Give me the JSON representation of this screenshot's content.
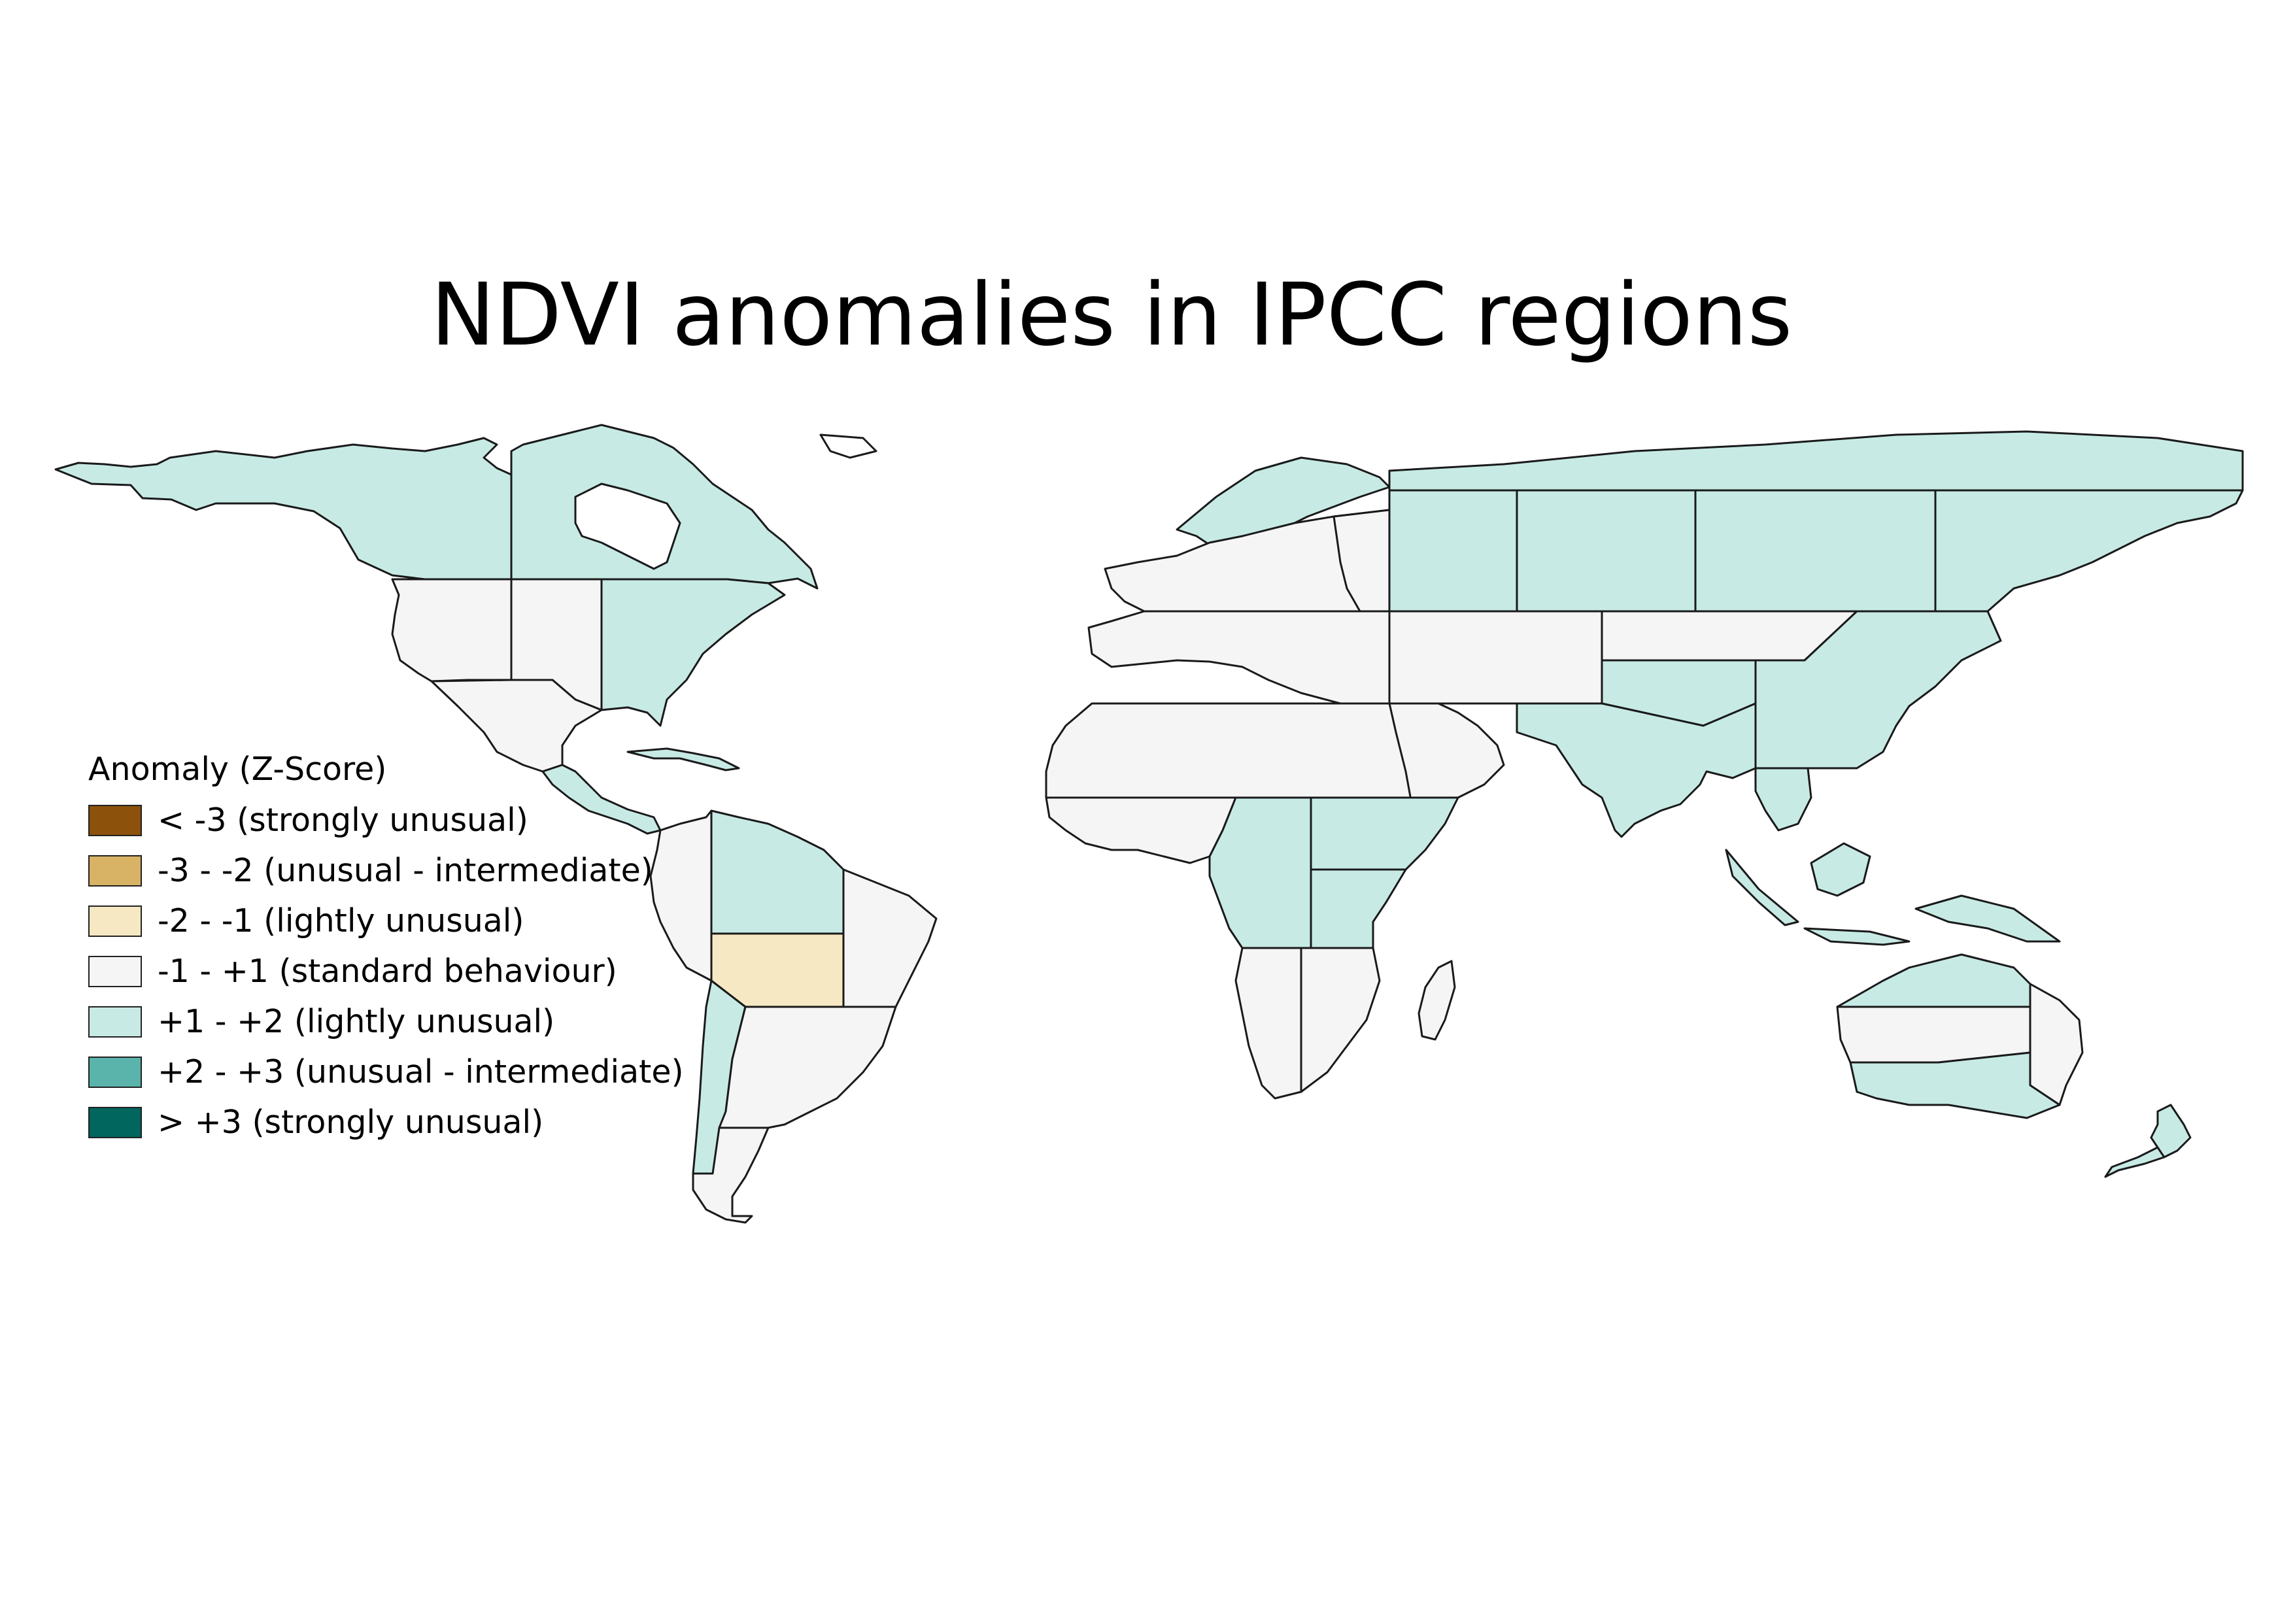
{
  "title": "NDVI anomalies in IPCC regions",
  "legend": {
    "title": "Anomaly (Z-Score)",
    "items": [
      {
        "label": "< -3 (strongly unusual)",
        "color": "#8c510a"
      },
      {
        "label": "-3 - -2 (unusual - intermediate)",
        "color": "#d8b365"
      },
      {
        "label": "-2 - -1 (lightly unusual)",
        "color": "#f6e8c3"
      },
      {
        "label": "-1 - +1 (standard behaviour)",
        "color": "#f5f5f5"
      },
      {
        "label": "+1 - +2 (lightly unusual)",
        "color": "#c7eae5"
      },
      {
        "label": "+2 - +3 (unusual - intermediate)",
        "color": "#5ab4ac"
      },
      {
        "label": "> +3 (strongly unusual)",
        "color": "#01665e"
      }
    ]
  },
  "map_data": {
    "class_colors": {
      "lightly_unusual_neg": "#f6e8c3",
      "standard": "#f5f5f5",
      "lightly_unusual_pos": "#c7eae5"
    },
    "regions": [
      {
        "name": "North-Western North America",
        "class": "lightly_unusual_pos"
      },
      {
        "name": "North-Eastern North America",
        "class": "lightly_unusual_pos"
      },
      {
        "name": "Western North America",
        "class": "standard"
      },
      {
        "name": "Central North America",
        "class": "standard"
      },
      {
        "name": "Eastern North America",
        "class": "lightly_unusual_pos"
      },
      {
        "name": "Northern Central America",
        "class": "standard"
      },
      {
        "name": "Southern Central America",
        "class": "lightly_unusual_pos"
      },
      {
        "name": "Caribbean",
        "class": "lightly_unusual_pos"
      },
      {
        "name": "North-Western South America",
        "class": "standard"
      },
      {
        "name": "Northern South America",
        "class": "lightly_unusual_pos"
      },
      {
        "name": "North-Eastern South America",
        "class": "standard"
      },
      {
        "name": "South American Monsoon",
        "class": "lightly_unusual_neg"
      },
      {
        "name": "South-Western South America",
        "class": "lightly_unusual_pos"
      },
      {
        "name": "South-Eastern South America",
        "class": "standard"
      },
      {
        "name": "Southern South America",
        "class": "standard"
      },
      {
        "name": "Northern Europe",
        "class": "lightly_unusual_pos"
      },
      {
        "name": "Western and Central Europe",
        "class": "standard"
      },
      {
        "name": "Eastern Europe",
        "class": "standard"
      },
      {
        "name": "Mediterranean",
        "class": "standard"
      },
      {
        "name": "Sahara",
        "class": "standard"
      },
      {
        "name": "Arabian Peninsula",
        "class": "standard"
      },
      {
        "name": "Western Africa",
        "class": "standard"
      },
      {
        "name": "Central Africa",
        "class": "lightly_unusual_pos"
      },
      {
        "name": "North Eastern Africa",
        "class": "lightly_unusual_pos"
      },
      {
        "name": "South Eastern Africa",
        "class": "lightly_unusual_pos"
      },
      {
        "name": "Western Southern Africa",
        "class": "standard"
      },
      {
        "name": "Eastern Southern Africa",
        "class": "standard"
      },
      {
        "name": "Madagascar",
        "class": "standard"
      },
      {
        "name": "West Siberia",
        "class": "lightly_unusual_pos"
      },
      {
        "name": "East Siberia",
        "class": "lightly_unusual_pos"
      },
      {
        "name": "Russian Far East",
        "class": "lightly_unusual_pos"
      },
      {
        "name": "Russian Arctic",
        "class": "lightly_unusual_pos"
      },
      {
        "name": "West Central Asia",
        "class": "standard"
      },
      {
        "name": "East Central Asia",
        "class": "standard"
      },
      {
        "name": "Tibetan Plateau",
        "class": "lightly_unusual_pos"
      },
      {
        "name": "East Asia",
        "class": "lightly_unusual_pos"
      },
      {
        "name": "South Asia",
        "class": "lightly_unusual_pos"
      },
      {
        "name": "South East Asia",
        "class": "lightly_unusual_pos"
      },
      {
        "name": "Northern Australia",
        "class": "lightly_unusual_pos"
      },
      {
        "name": "Central Australia",
        "class": "standard"
      },
      {
        "name": "Eastern Australia",
        "class": "standard"
      },
      {
        "name": "Southern Australia",
        "class": "lightly_unusual_pos"
      },
      {
        "name": "New Zealand",
        "class": "lightly_unusual_pos"
      }
    ]
  }
}
